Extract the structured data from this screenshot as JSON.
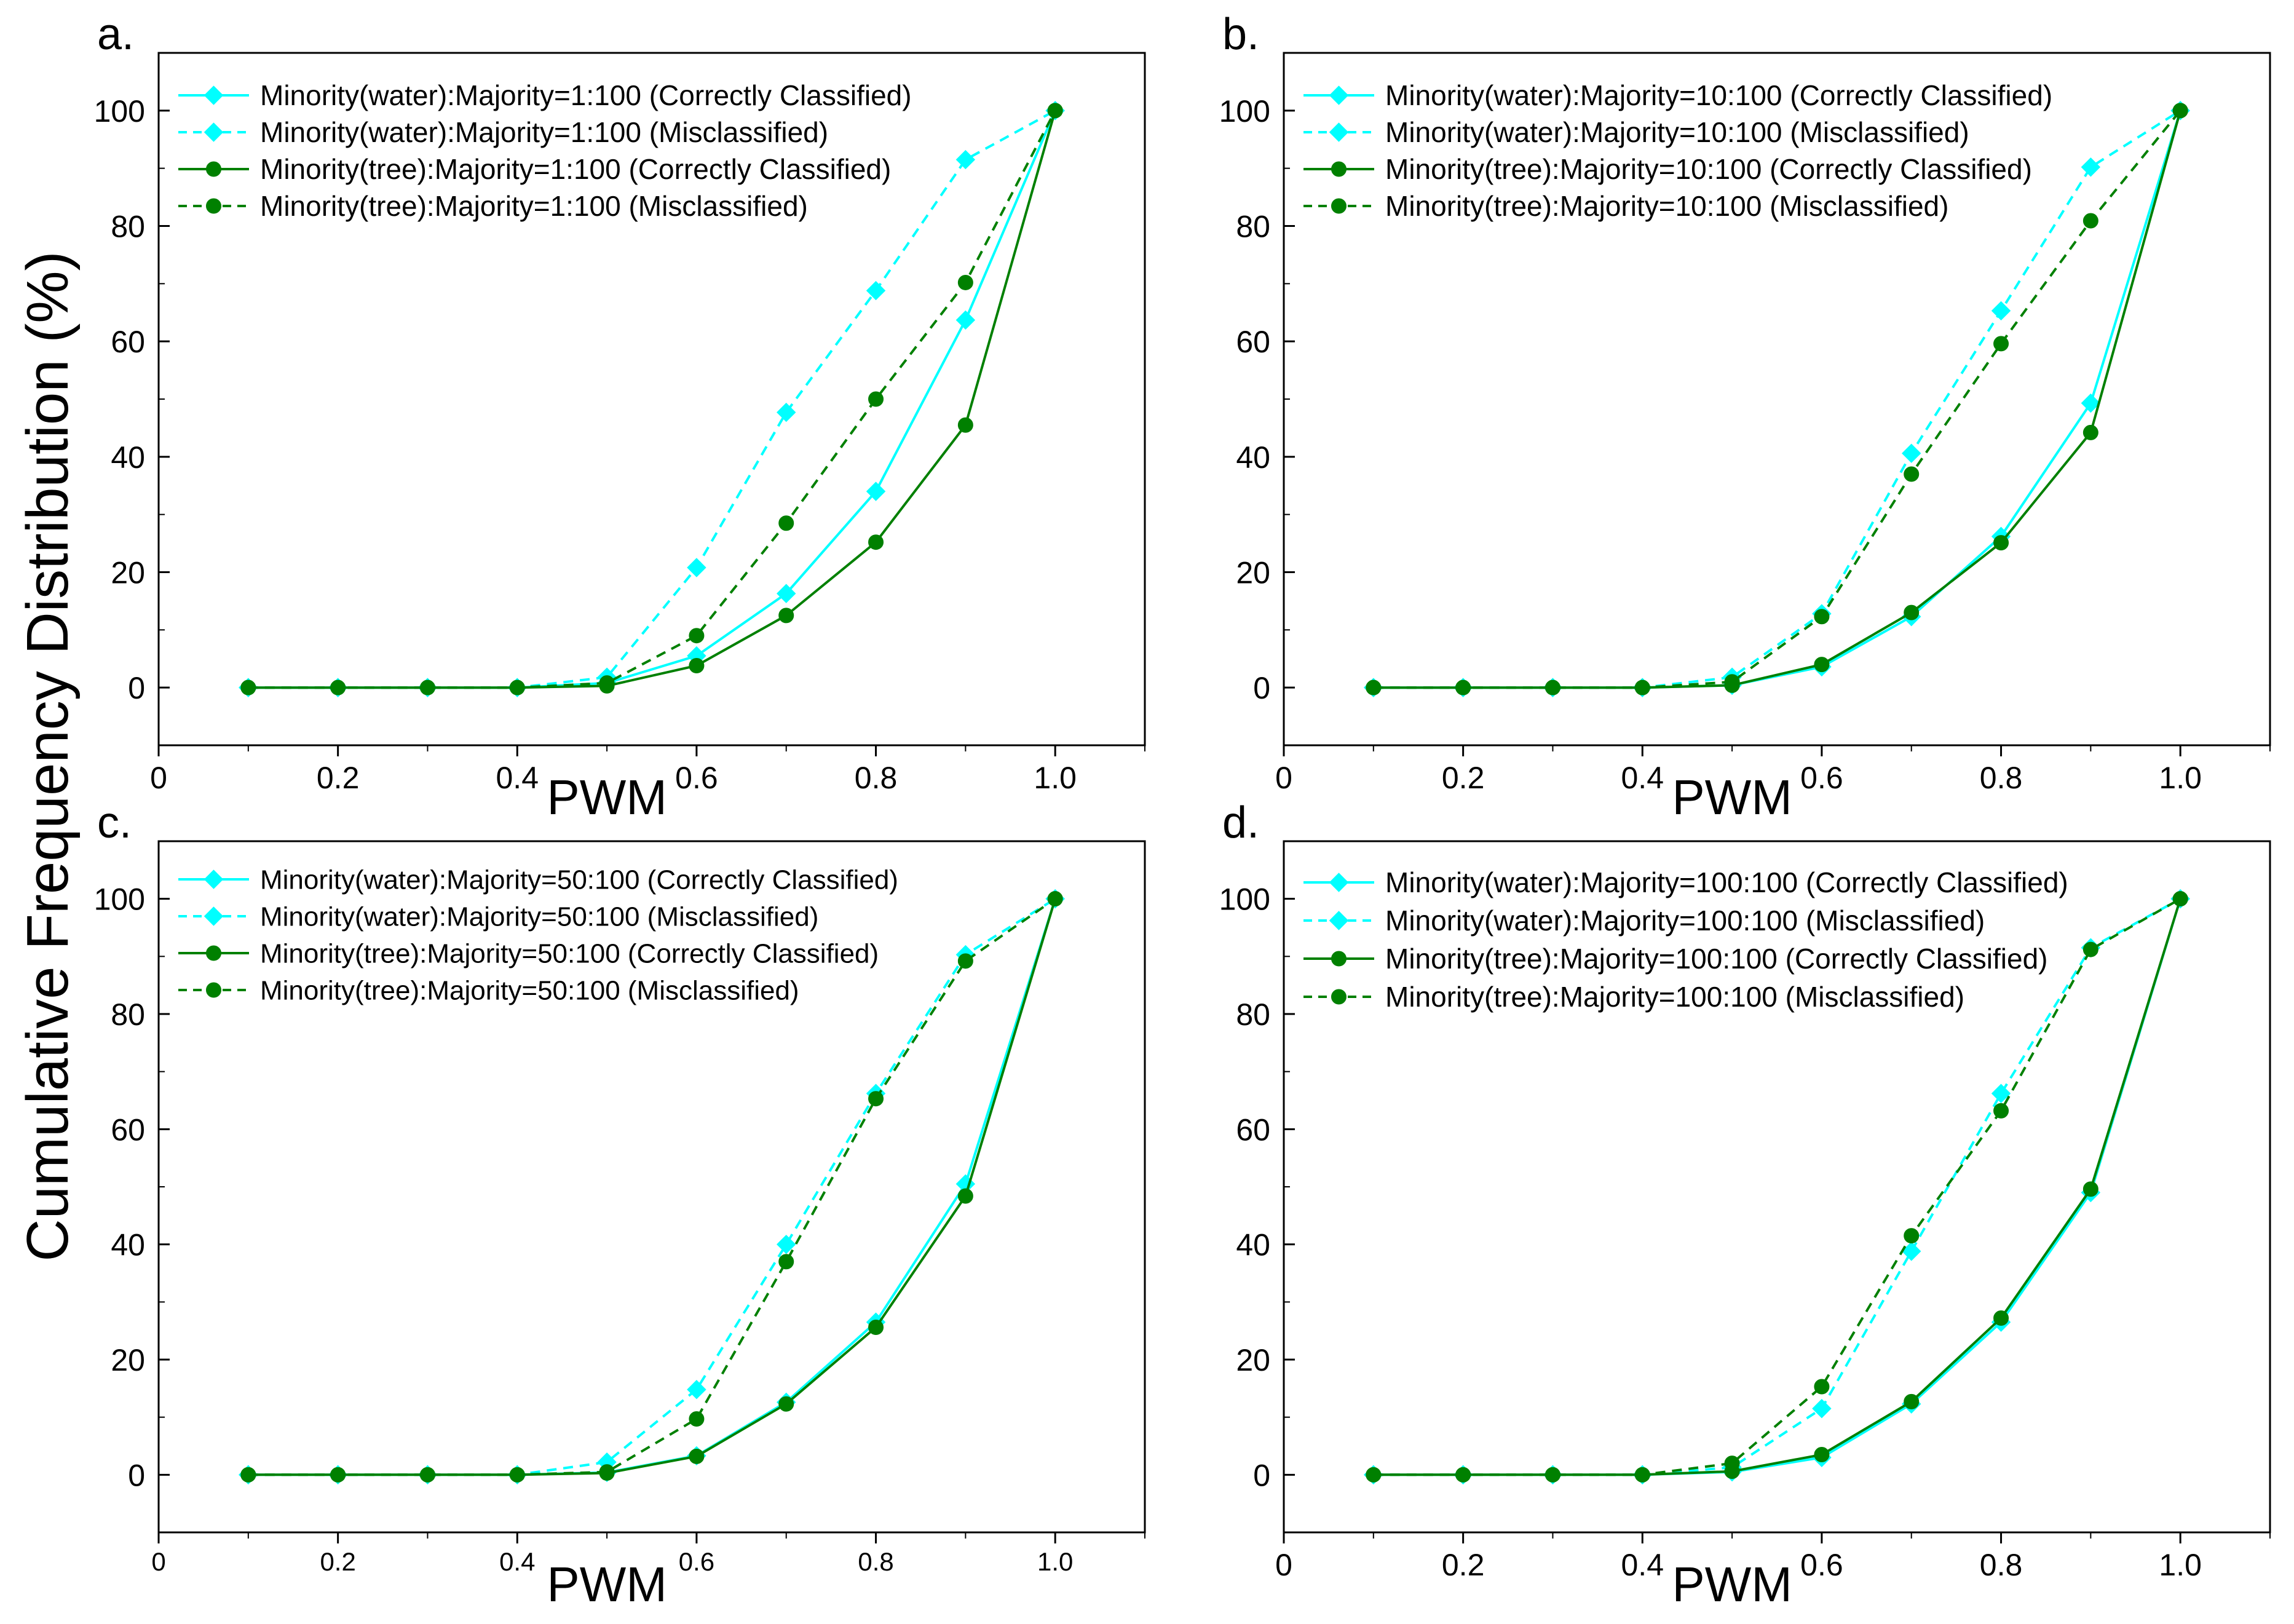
{
  "figure": {
    "ylabel": "Cumulative Frequency Distribution (%)",
    "colors": {
      "water": "#00FFFF",
      "tree": "#008000"
    }
  },
  "chart_data": [
    {
      "type": "line",
      "panel_label": "a.",
      "xlabel": "PWM",
      "ylabel": "Cumulative Frequency Distribution (%)",
      "xlim": [
        0,
        1.1
      ],
      "ylim": [
        -10,
        110
      ],
      "xticks": [
        "0",
        "0.2",
        "0.4",
        "0.6",
        "0.8",
        "1.0"
      ],
      "yticks": [
        "0",
        "20",
        "40",
        "60",
        "80",
        "100"
      ],
      "x": [
        0.1,
        0.2,
        0.3,
        0.4,
        0.5,
        0.6,
        0.7,
        0.8,
        0.9,
        1.0
      ],
      "series": [
        {
          "name": "Minority(water):Majority=1:100 (Correctly Classified)",
          "color": "#00FFFF",
          "dash": false,
          "marker": "diamond",
          "values": [
            0,
            0,
            0,
            0,
            0.8,
            5.5,
            16.3,
            34,
            63.7,
            100
          ]
        },
        {
          "name": "Minority(water):Majority=1:100 (Misclassified)",
          "color": "#00FFFF",
          "dash": true,
          "marker": "diamond",
          "values": [
            0,
            0,
            0,
            0,
            1.8,
            20.8,
            47.7,
            68.8,
            91.5,
            100
          ]
        },
        {
          "name": "Minority(tree):Majority=1:100 (Correctly Classified)",
          "color": "#008000",
          "dash": false,
          "marker": "circle",
          "values": [
            0,
            0,
            0,
            0,
            0.3,
            3.8,
            12.5,
            25.2,
            45.5,
            100
          ]
        },
        {
          "name": "Minority(tree):Majority=1:100 (Misclassified)",
          "color": "#008000",
          "dash": true,
          "marker": "circle",
          "values": [
            0,
            0,
            0,
            0,
            0.8,
            9,
            28.5,
            50,
            70.2,
            100
          ]
        }
      ]
    },
    {
      "type": "line",
      "panel_label": "b.",
      "xlabel": "PWM",
      "ylabel": "Cumulative Frequency Distribution (%)",
      "xlim": [
        0,
        1.1
      ],
      "ylim": [
        -10,
        110
      ],
      "xticks": [
        "0",
        "0.2",
        "0.4",
        "0.6",
        "0.8",
        "1.0"
      ],
      "yticks": [
        "0",
        "20",
        "40",
        "60",
        "80",
        "100"
      ],
      "x": [
        0.1,
        0.2,
        0.3,
        0.4,
        0.5,
        0.6,
        0.7,
        0.8,
        0.9,
        1.0
      ],
      "series": [
        {
          "name": "Minority(water):Majority=10:100 (Correctly Classified)",
          "color": "#00FFFF",
          "dash": false,
          "marker": "diamond",
          "values": [
            0,
            0,
            0,
            0,
            0.4,
            3.6,
            12.3,
            26.2,
            49.3,
            100
          ]
        },
        {
          "name": "Minority(water):Majority=10:100 (Misclassified)",
          "color": "#00FFFF",
          "dash": true,
          "marker": "diamond",
          "values": [
            0,
            0,
            0,
            0,
            1.8,
            12.8,
            40.6,
            65.3,
            90.2,
            100
          ]
        },
        {
          "name": "Minority(tree):Majority=10:100 (Correctly Classified)",
          "color": "#008000",
          "dash": false,
          "marker": "circle",
          "values": [
            0,
            0,
            0,
            0,
            0.4,
            4,
            13,
            25.1,
            44.2,
            100
          ]
        },
        {
          "name": "Minority(tree):Majority=10:100 (Misclassified)",
          "color": "#008000",
          "dash": true,
          "marker": "circle",
          "values": [
            0,
            0,
            0,
            0,
            1,
            12.3,
            37,
            59.6,
            80.9,
            100
          ]
        }
      ]
    },
    {
      "type": "line",
      "panel_label": "c.",
      "xlabel": "PWM",
      "ylabel": "Cumulative Frequency Distribution (%)",
      "xlim": [
        0,
        1.1
      ],
      "ylim": [
        -10,
        110
      ],
      "xticks": [
        "0",
        "0.2",
        "0.4",
        "0.6",
        "0.8",
        "1.0"
      ],
      "yticks": [
        "0",
        "20",
        "40",
        "60",
        "80",
        "100"
      ],
      "x": [
        0.1,
        0.2,
        0.3,
        0.4,
        0.5,
        0.6,
        0.7,
        0.8,
        0.9,
        1.0
      ],
      "series": [
        {
          "name": "Minority(water):Majority=50:100 (Correctly Classified)",
          "color": "#00FFFF",
          "dash": false,
          "marker": "diamond",
          "values": [
            0,
            0,
            0,
            0,
            0.4,
            3.3,
            12.6,
            26.5,
            50.5,
            100
          ]
        },
        {
          "name": "Minority(water):Majority=50:100 (Misclassified)",
          "color": "#00FFFF",
          "dash": true,
          "marker": "diamond",
          "values": [
            0,
            0,
            0,
            0,
            2.2,
            14.8,
            40,
            66.2,
            90.3,
            100
          ]
        },
        {
          "name": "Minority(tree):Majority=50:100 (Correctly Classified)",
          "color": "#008000",
          "dash": false,
          "marker": "circle",
          "values": [
            0,
            0,
            0,
            0,
            0.3,
            3.2,
            12.3,
            25.6,
            48.4,
            100
          ]
        },
        {
          "name": "Minority(tree):Majority=50:100 (Misclassified)",
          "color": "#008000",
          "dash": true,
          "marker": "circle",
          "values": [
            0,
            0,
            0,
            0,
            0.5,
            9.7,
            37,
            65.3,
            89.2,
            100
          ]
        }
      ]
    },
    {
      "type": "line",
      "panel_label": "d.",
      "xlabel": "PWM",
      "ylabel": "Cumulative Frequency Distribution (%)",
      "xlim": [
        0,
        1.1
      ],
      "ylim": [
        -10,
        110
      ],
      "xticks": [
        "0",
        "0.2",
        "0.4",
        "0.6",
        "0.8",
        "1.0"
      ],
      "yticks": [
        "0",
        "20",
        "40",
        "60",
        "80",
        "100"
      ],
      "x": [
        0.1,
        0.2,
        0.3,
        0.4,
        0.5,
        0.6,
        0.7,
        0.8,
        0.9,
        1.0
      ],
      "series": [
        {
          "name": "Minority(water):Majority=100:100 (Correctly Classified)",
          "color": "#00FFFF",
          "dash": false,
          "marker": "diamond",
          "values": [
            0,
            0,
            0,
            0,
            0.5,
            3,
            12.3,
            26.5,
            49,
            100
          ]
        },
        {
          "name": "Minority(water):Majority=100:100 (Misclassified)",
          "color": "#00FFFF",
          "dash": true,
          "marker": "diamond",
          "values": [
            0,
            0,
            0,
            0,
            1.3,
            11.5,
            38.8,
            66.2,
            91.5,
            100
          ]
        },
        {
          "name": "Minority(tree):Majority=100:100 (Correctly Classified)",
          "color": "#008000",
          "dash": false,
          "marker": "circle",
          "values": [
            0,
            0,
            0,
            0,
            0.6,
            3.5,
            12.7,
            27.2,
            49.6,
            100
          ]
        },
        {
          "name": "Minority(tree):Majority=100:100 (Misclassified)",
          "color": "#008000",
          "dash": true,
          "marker": "circle",
          "values": [
            0,
            0,
            0,
            0,
            2,
            15.3,
            41.5,
            63.2,
            91.2,
            100
          ]
        }
      ]
    }
  ]
}
